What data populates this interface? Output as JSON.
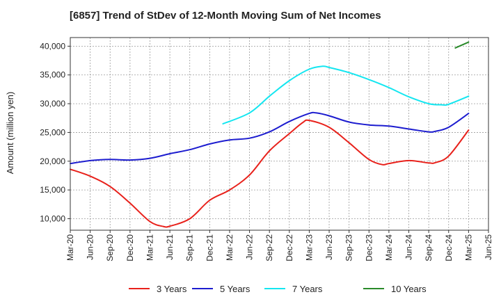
{
  "chart_data": {
    "type": "line",
    "title": "[6857]  Trend of StDev of 12-Month Moving Sum of Net Incomes",
    "ylabel": "Amount (million yen)",
    "xlabel": "",
    "ylim": [
      8000,
      41500
    ],
    "y_ticks": [
      10000,
      15000,
      20000,
      25000,
      30000,
      35000,
      40000
    ],
    "y_tick_labels": [
      "10,000",
      "15,000",
      "20,000",
      "25,000",
      "30,000",
      "35,000",
      "40,000"
    ],
    "x_ticks": [
      "Mar-20",
      "Jun-20",
      "Sep-20",
      "Dec-20",
      "Mar-21",
      "Jun-21",
      "Sep-21",
      "Dec-21",
      "Mar-22",
      "Jun-22",
      "Sep-22",
      "Dec-22",
      "Mar-23",
      "Jun-23",
      "Sep-23",
      "Dec-23",
      "Mar-24",
      "Jun-24",
      "Sep-24",
      "Dec-24",
      "Mar-25",
      "Jun-25"
    ],
    "grid": true,
    "legend_position": "bottom",
    "series": [
      {
        "name": "3 Years",
        "color": "#e8211b",
        "points": [
          [
            "Mar-20",
            18600
          ],
          [
            "Jun-20",
            17400
          ],
          [
            "Sep-20",
            15600
          ],
          [
            "Dec-20",
            12700
          ],
          [
            "Mar-21",
            9500
          ],
          [
            "May-21",
            8650
          ],
          [
            "Jun-21",
            8700
          ],
          [
            "Sep-21",
            10000
          ],
          [
            "Dec-21",
            13200
          ],
          [
            "Mar-22",
            15000
          ],
          [
            "Jun-22",
            17600
          ],
          [
            "Sep-22",
            21800
          ],
          [
            "Dec-22",
            24800
          ],
          [
            "Feb-23",
            26700
          ],
          [
            "Mar-23",
            27100
          ],
          [
            "Jun-23",
            25900
          ],
          [
            "Sep-23",
            23200
          ],
          [
            "Dec-23",
            20300
          ],
          [
            "Feb-24",
            19400
          ],
          [
            "Mar-24",
            19600
          ],
          [
            "Jun-24",
            20100
          ],
          [
            "Sep-24",
            19700
          ],
          [
            "Oct-24",
            19750
          ],
          [
            "Dec-24",
            20900
          ],
          [
            "Mar-25",
            25400
          ]
        ]
      },
      {
        "name": "5 Years",
        "color": "#1c1ccf",
        "points": [
          [
            "Mar-20",
            19600
          ],
          [
            "Jun-20",
            20100
          ],
          [
            "Sep-20",
            20300
          ],
          [
            "Dec-20",
            20200
          ],
          [
            "Mar-21",
            20500
          ],
          [
            "Jun-21",
            21300
          ],
          [
            "Sep-21",
            22000
          ],
          [
            "Dec-21",
            23000
          ],
          [
            "Mar-22",
            23700
          ],
          [
            "Jun-22",
            24000
          ],
          [
            "Sep-22",
            25100
          ],
          [
            "Dec-22",
            26900
          ],
          [
            "Mar-23",
            28300
          ],
          [
            "Apr-23",
            28400
          ],
          [
            "Jun-23",
            27900
          ],
          [
            "Sep-23",
            26800
          ],
          [
            "Dec-23",
            26300
          ],
          [
            "Mar-24",
            26100
          ],
          [
            "Jun-24",
            25600
          ],
          [
            "Sep-24",
            25100
          ],
          [
            "Oct-24",
            25200
          ],
          [
            "Dec-24",
            25900
          ],
          [
            "Mar-25",
            28300
          ]
        ]
      },
      {
        "name": "7 Years",
        "color": "#14e6f0",
        "points": [
          [
            "Feb-22",
            26500
          ],
          [
            "Jun-22",
            28400
          ],
          [
            "Sep-22",
            31300
          ],
          [
            "Dec-22",
            34000
          ],
          [
            "Mar-23",
            36000
          ],
          [
            "May-23",
            36500
          ],
          [
            "Jun-23",
            36300
          ],
          [
            "Sep-23",
            35400
          ],
          [
            "Dec-23",
            34200
          ],
          [
            "Mar-24",
            32800
          ],
          [
            "Jun-24",
            31200
          ],
          [
            "Sep-24",
            30000
          ],
          [
            "Nov-24",
            29800
          ],
          [
            "Dec-24",
            29900
          ],
          [
            "Mar-25",
            31300
          ]
        ]
      },
      {
        "name": "10 Years",
        "color": "#2a8a2a",
        "points": [
          [
            "Jan-25",
            39700
          ],
          [
            "Mar-25",
            40700
          ]
        ]
      }
    ]
  }
}
